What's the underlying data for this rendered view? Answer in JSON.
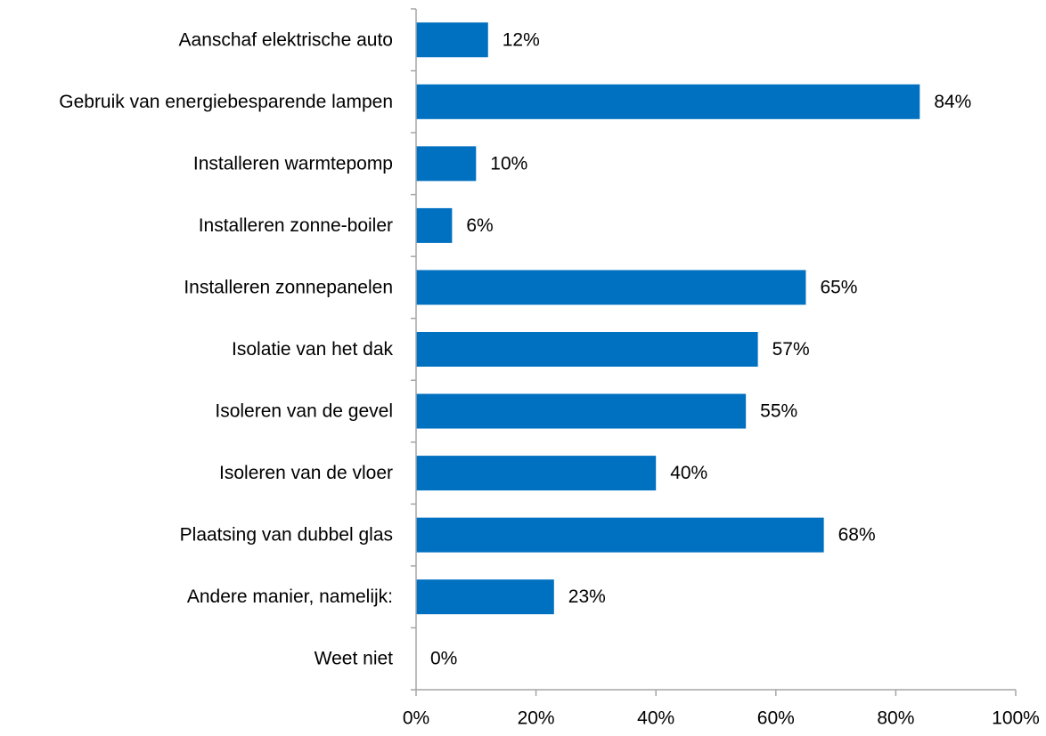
{
  "chart_data": {
    "type": "bar",
    "orientation": "horizontal",
    "categories": [
      "Aanschaf elektrische auto",
      "Gebruik van energiebesparende lampen",
      "Installeren warmtepomp",
      "Installeren zonne-boiler",
      "Installeren zonnepanelen",
      "Isolatie van het dak",
      "Isoleren van de gevel",
      "Isoleren van de vloer",
      "Plaatsing van dubbel glas",
      "Andere manier, namelijk:",
      "Weet niet"
    ],
    "values": [
      12,
      84,
      10,
      6,
      65,
      57,
      55,
      40,
      68,
      23,
      0
    ],
    "data_labels": [
      "12%",
      "84%",
      "10%",
      "6%",
      "65%",
      "57%",
      "55%",
      "40%",
      "68%",
      "23%",
      "0%"
    ],
    "x_ticks": [
      0,
      20,
      40,
      60,
      80,
      100
    ],
    "x_tick_labels": [
      "0%",
      "20%",
      "40%",
      "60%",
      "80%",
      "100%"
    ],
    "xlim": [
      0,
      100
    ],
    "grid": false,
    "legend": "none",
    "title": "",
    "xlabel": "",
    "ylabel": "",
    "colors": {
      "bar": "#0070C0",
      "axis": "#A6A6A6",
      "text": "#000000"
    }
  }
}
